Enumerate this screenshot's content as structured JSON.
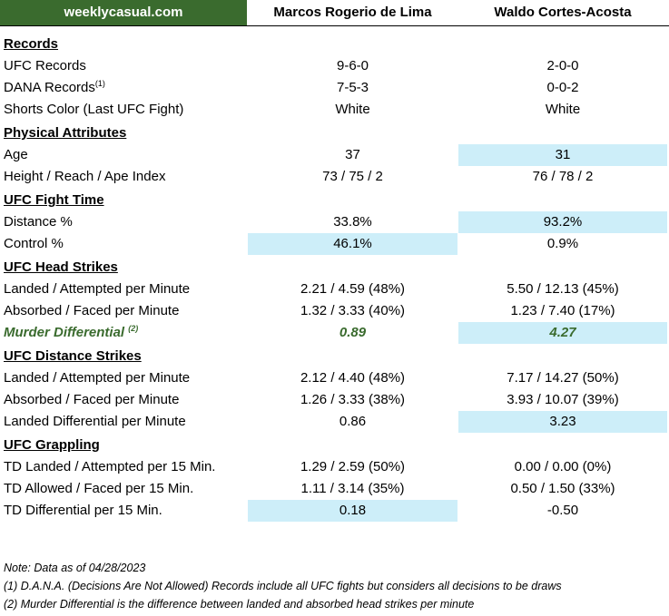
{
  "header": {
    "brand": "weeklycasual.com",
    "fighter1": "Marcos Rogerio de Lima",
    "fighter2": "Waldo Cortes-Acosta"
  },
  "sections": {
    "records": {
      "title": "Records",
      "ufc": {
        "label": "UFC Records",
        "f1": "9-6-0",
        "f2": "2-0-0"
      },
      "dana": {
        "label": "DANA Records",
        "sup": "(1)",
        "f1": "7-5-3",
        "f2": "0-0-2"
      },
      "shorts": {
        "label": "Shorts Color (Last UFC Fight)",
        "f1": "White",
        "f2": "White"
      }
    },
    "physical": {
      "title": "Physical Attributes",
      "age": {
        "label": "Age",
        "f1": "37",
        "f2": "31"
      },
      "height": {
        "label": "Height / Reach / Ape Index",
        "f1": "73 / 75 / 2",
        "f2": "76 / 78 / 2"
      }
    },
    "fight_time": {
      "title": "UFC Fight Time",
      "distance": {
        "label": "Distance %",
        "f1": "33.8%",
        "f2": "93.2%"
      },
      "control": {
        "label": "Control %",
        "f1": "46.1%",
        "f2": "0.9%"
      }
    },
    "head": {
      "title": "UFC Head Strikes",
      "landed": {
        "label": "Landed / Attempted per Minute",
        "f1": "2.21 / 4.59 (48%)",
        "f2": "5.50 / 12.13 (45%)"
      },
      "absorbed": {
        "label": "Absorbed / Faced per Minute",
        "f1": "1.32 / 3.33 (40%)",
        "f2": "1.23 / 7.40 (17%)"
      },
      "murder": {
        "label": "Murder Differential",
        "sup": "(2)",
        "f1": "0.89",
        "f2": "4.27"
      }
    },
    "distance": {
      "title": "UFC Distance Strikes",
      "landed": {
        "label": "Landed / Attempted per Minute",
        "f1": "2.12 / 4.40 (48%)",
        "f2": "7.17 / 14.27 (50%)"
      },
      "absorbed": {
        "label": "Absorbed / Faced per Minute",
        "f1": "1.26 / 3.33 (38%)",
        "f2": "3.93 / 10.07 (39%)"
      },
      "diff": {
        "label": "Landed Differential per Minute",
        "f1": "0.86",
        "f2": "3.23"
      }
    },
    "grappling": {
      "title": "UFC Grappling",
      "td_landed": {
        "label": "TD Landed / Attempted per 15 Min.",
        "f1": "1.29 / 2.59 (50%)",
        "f2": "0.00 / 0.00 (0%)"
      },
      "td_allowed": {
        "label": "TD Allowed / Faced per 15 Min.",
        "f1": "1.11 / 3.14 (35%)",
        "f2": "0.50 / 1.50 (33%)"
      },
      "td_diff": {
        "label": "TD Differential per 15 Min.",
        "f1": "0.18",
        "f2": "-0.50"
      }
    }
  },
  "notes": {
    "date": "Note: Data as of 04/28/2023",
    "n1": "(1) D.A.N.A. (Decisions Are Not Allowed) Records include all UFC fights but considers all decisions to be draws",
    "n2": "(2) Murder Differential is the difference between landed and absorbed head strikes per minute"
  },
  "colors": {
    "brand_green": "#3a6b2e",
    "highlight_blue": "#cdeef9"
  }
}
